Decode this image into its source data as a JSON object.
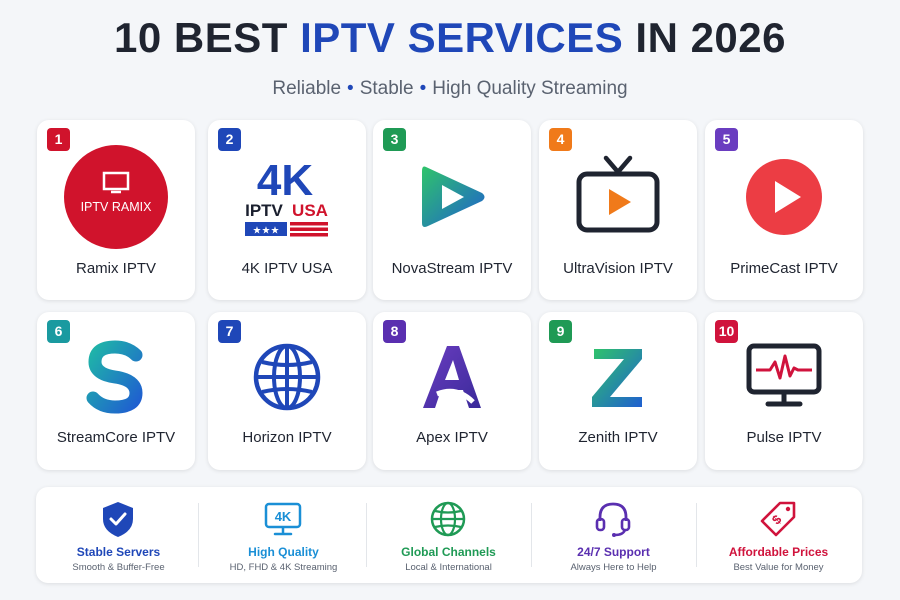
{
  "header": {
    "title_part1": "10 BEST",
    "title_highlight": "IPTV SERVICES",
    "title_part2": "IN 2026",
    "subtitle_items": [
      "Reliable",
      "Stable",
      "High Quality Streaming"
    ],
    "separator": "•"
  },
  "services": [
    {
      "rank": "1",
      "name": "Ramix IPTV",
      "logo_text": "IPTV RAMIX",
      "badge_color": "#d0132c",
      "icon": "tv-circle-logo"
    },
    {
      "rank": "2",
      "name": "4K IPTV USA",
      "logo_text_top": "4K",
      "logo_text_mid_a": "IPTV",
      "logo_text_mid_b": "USA",
      "logo_stars": "★★★",
      "badge_color": "#1f47b8",
      "icon": "usa-flag-logo"
    },
    {
      "rank": "3",
      "name": "NovaStream IPTV",
      "badge_color": "#1f9a55",
      "icon": "play-triangle-logo"
    },
    {
      "rank": "4",
      "name": "UltraVision IPTV",
      "badge_color": "#f07a1a",
      "icon": "tv-play-logo"
    },
    {
      "rank": "5",
      "name": "PrimeCast IPTV",
      "badge_color": "#6a3dc0",
      "icon": "play-circle-logo"
    },
    {
      "rank": "6",
      "name": "StreamCore IPTV",
      "badge_color": "#1a9aa0",
      "icon": "s-letter-logo"
    },
    {
      "rank": "7",
      "name": "Horizon IPTV",
      "badge_color": "#1f47b8",
      "icon": "globe-logo"
    },
    {
      "rank": "8",
      "name": "Apex IPTV",
      "badge_color": "#5a2fb0",
      "icon": "a-letter-logo"
    },
    {
      "rank": "9",
      "name": "Zenith IPTV",
      "badge_color": "#1f9a55",
      "icon": "z-letter-logo"
    },
    {
      "rank": "10",
      "name": "Pulse IPTV",
      "badge_color": "#d0133c",
      "icon": "monitor-pulse-logo"
    }
  ],
  "features": [
    {
      "title": "Stable Servers",
      "desc": "Smooth & Buffer-Free",
      "color": "#1f47b8",
      "icon": "shield-check-icon"
    },
    {
      "title": "High Quality",
      "desc": "HD, FHD & 4K Streaming",
      "color": "#1a8fd6",
      "icon": "monitor-4k-icon",
      "icon_text": "4K"
    },
    {
      "title": "Global Channels",
      "desc": "Local & International",
      "color": "#1f9a55",
      "icon": "globe-icon"
    },
    {
      "title": "24/7 Support",
      "desc": "Always Here to Help",
      "color": "#5a2fb0",
      "icon": "headset-icon"
    },
    {
      "title": "Affordable Prices",
      "desc": "Best Value for Money",
      "color": "#d0133c",
      "icon": "price-tag-icon"
    }
  ]
}
